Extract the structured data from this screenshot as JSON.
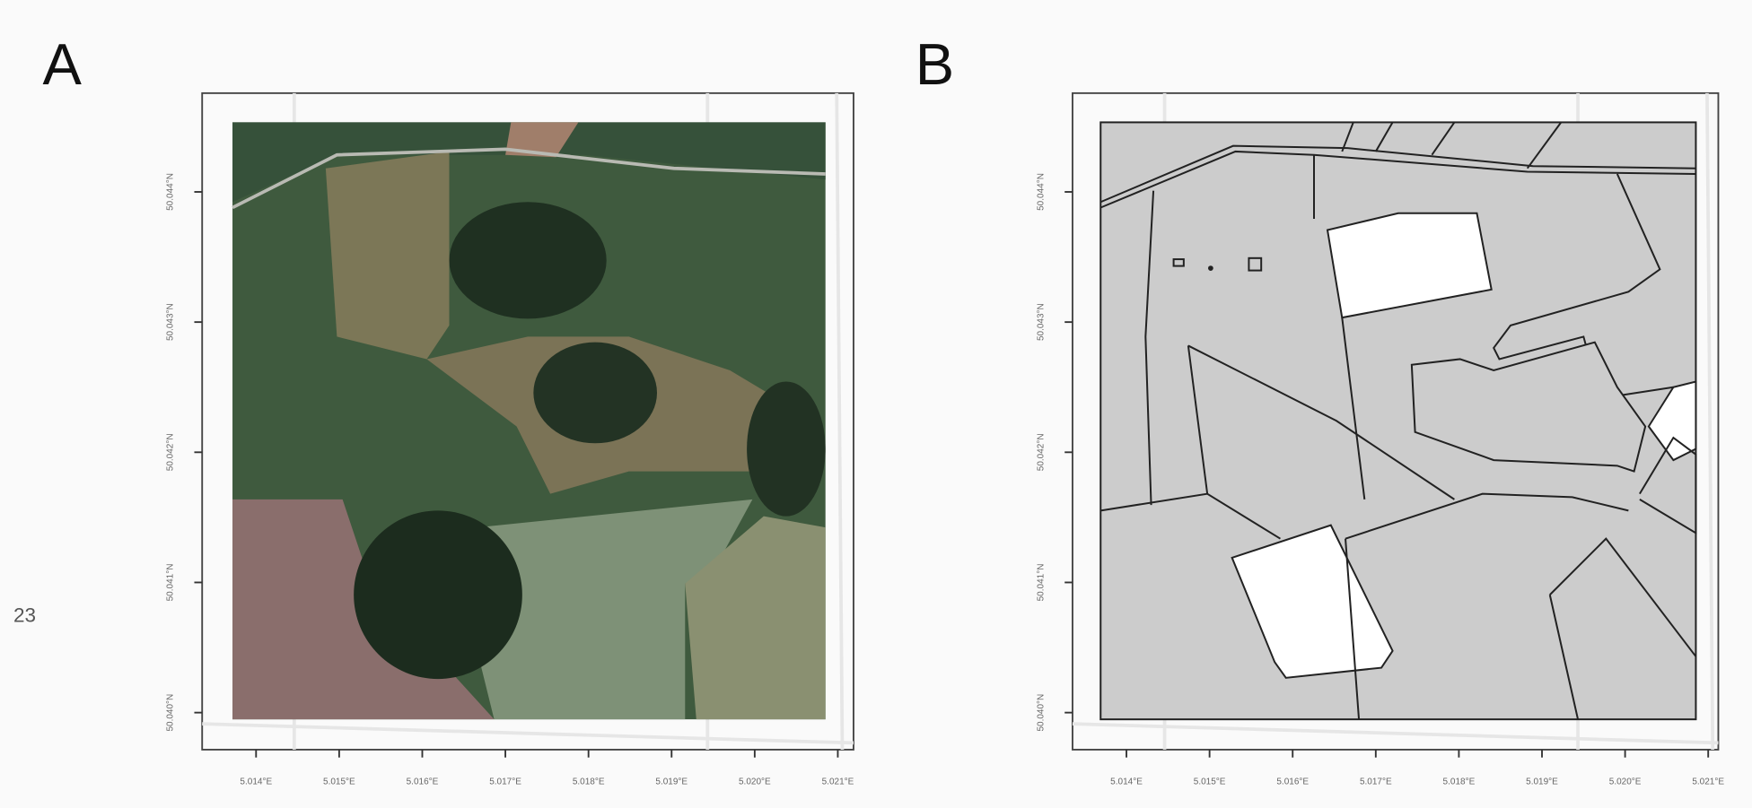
{
  "page_label": "23",
  "panels": [
    {
      "letter": "A",
      "x_ticks": [
        "5.014°E",
        "5.015°E",
        "5.016°E",
        "5.017°E",
        "5.018°E",
        "5.019°E",
        "5.020°E",
        "5.021°E"
      ],
      "y_ticks": [
        "50.040°N",
        "50.041°N",
        "50.042°N",
        "50.043°N",
        "50.044°N"
      ]
    },
    {
      "letter": "B",
      "x_ticks": [
        "5.014°E",
        "5.015°E",
        "5.016°E",
        "5.017°E",
        "5.018°E",
        "5.019°E",
        "5.020°E",
        "5.021°E"
      ],
      "y_ticks": [
        "50.040°N",
        "50.041°N",
        "50.042°N",
        "50.043°N",
        "50.044°N"
      ]
    }
  ]
}
